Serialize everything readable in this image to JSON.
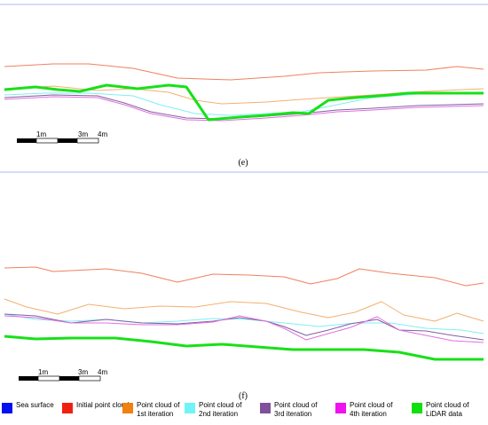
{
  "panels": [
    {
      "id": "e",
      "label": "(e)",
      "scale_labels": [
        "1m",
        "3m",
        "4m"
      ],
      "colors": {
        "sea": "#b0b4f4",
        "initial": "#f08060",
        "iter1": "#f4b070",
        "iter2": "#80eef4",
        "iter3": "#8060a0",
        "iter4": "#e070e0",
        "lidar": "#18e018"
      },
      "series": [
        {
          "key": "sea",
          "points": [
            [
              0,
              5
            ],
            [
              550,
              5
            ]
          ]
        },
        {
          "key": "initial",
          "points": [
            [
              5,
              75
            ],
            [
              60,
              72
            ],
            [
              100,
              72
            ],
            [
              150,
              77
            ],
            [
              200,
              88
            ],
            [
              260,
              90
            ],
            [
              320,
              86
            ],
            [
              360,
              82
            ],
            [
              420,
              80
            ],
            [
              480,
              79
            ],
            [
              515,
              75
            ],
            [
              545,
              78
            ]
          ]
        },
        {
          "key": "iter1",
          "points": [
            [
              5,
              101
            ],
            [
              60,
              97
            ],
            [
              110,
              102
            ],
            [
              150,
              100
            ],
            [
              190,
              104
            ],
            [
              220,
              113
            ],
            [
              250,
              117
            ],
            [
              300,
              115
            ],
            [
              340,
              112
            ],
            [
              370,
              110
            ],
            [
              420,
              107
            ],
            [
              460,
              104
            ],
            [
              500,
              102
            ],
            [
              545,
              100
            ]
          ]
        },
        {
          "key": "iter2",
          "points": [
            [
              5,
              107
            ],
            [
              50,
              105
            ],
            [
              100,
              105
            ],
            [
              150,
              108
            ],
            [
              180,
              118
            ],
            [
              220,
              128
            ],
            [
              260,
              130
            ],
            [
              300,
              128
            ],
            [
              340,
              126
            ],
            [
              380,
              118
            ],
            [
              420,
              110
            ],
            [
              470,
              106
            ],
            [
              545,
              104
            ]
          ]
        },
        {
          "key": "iter3",
          "points": [
            [
              5,
              110
            ],
            [
              60,
              107
            ],
            [
              110,
              108
            ],
            [
              140,
              116
            ],
            [
              170,
              126
            ],
            [
              210,
              133
            ],
            [
              250,
              134
            ],
            [
              300,
              131
            ],
            [
              340,
              128
            ],
            [
              380,
              124
            ],
            [
              420,
              122
            ],
            [
              470,
              119
            ],
            [
              545,
              117
            ]
          ]
        },
        {
          "key": "iter4",
          "points": [
            [
              5,
              112
            ],
            [
              60,
              109
            ],
            [
              110,
              110
            ],
            [
              140,
              118
            ],
            [
              170,
              128
            ],
            [
              210,
              135
            ],
            [
              250,
              136
            ],
            [
              300,
              133
            ],
            [
              340,
              130
            ],
            [
              380,
              126
            ],
            [
              420,
              124
            ],
            [
              470,
              121
            ],
            [
              545,
              119
            ]
          ]
        },
        {
          "key": "lidar",
          "points": [
            [
              5,
              101
            ],
            [
              40,
              98
            ],
            [
              65,
              101
            ],
            [
              90,
              103
            ],
            [
              120,
              96
            ],
            [
              155,
              100
            ],
            [
              190,
              96
            ],
            [
              210,
              98
            ],
            [
              235,
              135
            ],
            [
              270,
              132
            ],
            [
              300,
              130
            ],
            [
              330,
              127
            ],
            [
              348,
              128
            ],
            [
              370,
              113
            ],
            [
              400,
              110
            ],
            [
              440,
              107
            ],
            [
              460,
              105
            ],
            [
              545,
              105
            ]
          ]
        }
      ]
    },
    {
      "id": "f",
      "label": "(f)",
      "scale_labels": [
        "1m",
        "3m",
        "4m"
      ],
      "colors": {
        "sea": "#b0b4f4",
        "initial": "#f08060",
        "iter1": "#f4b070",
        "iter2": "#80eef4",
        "iter3": "#8060a0",
        "iter4": "#e070e0",
        "lidar": "#18e018"
      },
      "series": [
        {
          "key": "sea",
          "points": [
            [
              0,
              194
            ],
            [
              550,
              194
            ]
          ]
        },
        {
          "key": "initial",
          "points": [
            [
              5,
              302
            ],
            [
              40,
              301
            ],
            [
              60,
              306
            ],
            [
              120,
              303
            ],
            [
              160,
              308
            ],
            [
              200,
              318
            ],
            [
              240,
              309
            ],
            [
              280,
              310
            ],
            [
              320,
              312
            ],
            [
              350,
              320
            ],
            [
              380,
              314
            ],
            [
              405,
              303
            ],
            [
              440,
              308
            ],
            [
              490,
              313
            ],
            [
              525,
              322
            ],
            [
              545,
              319
            ]
          ]
        },
        {
          "key": "iter1",
          "points": [
            [
              5,
              337
            ],
            [
              30,
              346
            ],
            [
              65,
              354
            ],
            [
              100,
              343
            ],
            [
              140,
              348
            ],
            [
              180,
              345
            ],
            [
              220,
              346
            ],
            [
              260,
              340
            ],
            [
              300,
              342
            ],
            [
              340,
              352
            ],
            [
              370,
              358
            ],
            [
              400,
              352
            ],
            [
              430,
              340
            ],
            [
              455,
              355
            ],
            [
              490,
              362
            ],
            [
              515,
              353
            ],
            [
              545,
              362
            ]
          ]
        },
        {
          "key": "iter2",
          "points": [
            [
              5,
              354
            ],
            [
              40,
              360
            ],
            [
              80,
              362
            ],
            [
              120,
              360
            ],
            [
              160,
              364
            ],
            [
              200,
              362
            ],
            [
              240,
              359
            ],
            [
              280,
              360
            ],
            [
              320,
              364
            ],
            [
              360,
              368
            ],
            [
              400,
              364
            ],
            [
              440,
              364
            ],
            [
              480,
              370
            ],
            [
              520,
              372
            ],
            [
              545,
              376
            ]
          ]
        },
        {
          "key": "iter3",
          "points": [
            [
              5,
              354
            ],
            [
              40,
              356
            ],
            [
              80,
              364
            ],
            [
              120,
              360
            ],
            [
              160,
              364
            ],
            [
              200,
              365
            ],
            [
              240,
              362
            ],
            [
              270,
              358
            ],
            [
              300,
              362
            ],
            [
              320,
              368
            ],
            [
              345,
              378
            ],
            [
              370,
              372
            ],
            [
              395,
              365
            ],
            [
              425,
              360
            ],
            [
              450,
              372
            ],
            [
              480,
              373
            ],
            [
              510,
              378
            ],
            [
              545,
              383
            ]
          ]
        },
        {
          "key": "iter4",
          "points": [
            [
              5,
              356
            ],
            [
              40,
              358
            ],
            [
              80,
              364
            ],
            [
              120,
              364
            ],
            [
              160,
              366
            ],
            [
              200,
              366
            ],
            [
              240,
              363
            ],
            [
              270,
              356
            ],
            [
              300,
              362
            ],
            [
              320,
              370
            ],
            [
              345,
              383
            ],
            [
              370,
              376
            ],
            [
              395,
              369
            ],
            [
              425,
              357
            ],
            [
              450,
              372
            ],
            [
              480,
              378
            ],
            [
              510,
              384
            ],
            [
              545,
              386
            ]
          ]
        },
        {
          "key": "lidar",
          "points": [
            [
              5,
              379
            ],
            [
              40,
              382
            ],
            [
              80,
              381
            ],
            [
              130,
              381
            ],
            [
              170,
              385
            ],
            [
              210,
              390
            ],
            [
              250,
              388
            ],
            [
              290,
              391
            ],
            [
              330,
              394
            ],
            [
              370,
              394
            ],
            [
              410,
              394
            ],
            [
              450,
              397
            ],
            [
              490,
              405
            ],
            [
              545,
              405
            ]
          ]
        }
      ]
    }
  ],
  "legend": [
    {
      "label": "Sea surface",
      "color": "#0010f0"
    },
    {
      "label": "Initial point cloud",
      "color": "#f02010"
    },
    {
      "label": "Point cloud of 1st iteration",
      "color": "#f08010"
    },
    {
      "label": "Point cloud of 2nd iteration",
      "color": "#70f4f8"
    },
    {
      "label": "Point cloud of 3rd iteration",
      "color": "#80509a"
    },
    {
      "label": "Point cloud of 4th iteration",
      "color": "#f010f0"
    },
    {
      "label": "Point cloud of LiDAR data",
      "color": "#10e010"
    }
  ]
}
